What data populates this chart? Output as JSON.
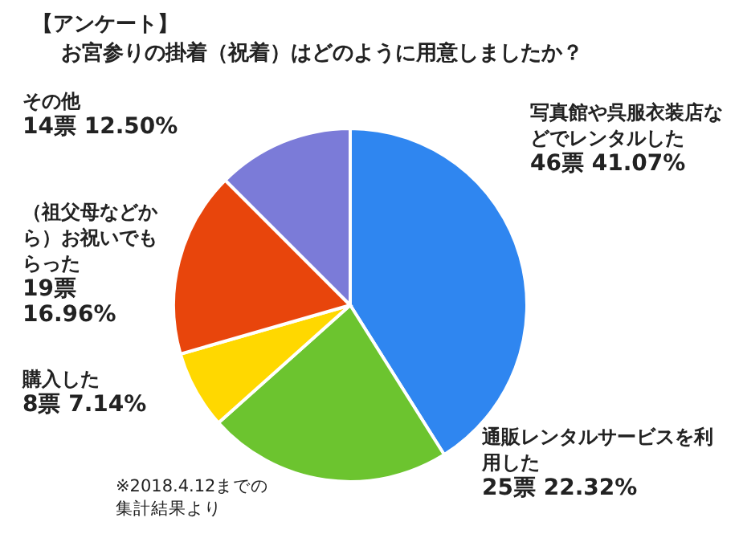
{
  "chart_data": {
    "type": "pie",
    "title": "【アンケート】",
    "subtitle": "お宮参りの掛着（祝着）はどのように用意しましたか？",
    "categories": [
      "写真館や呉服衣装店などでレンタルした",
      "通販レンタルサービスを利用した",
      "購入した",
      "（祖父母などから）お祝いでもらった",
      "その他"
    ],
    "values": [
      46,
      25,
      8,
      19,
      14
    ],
    "value_labels": [
      "46票 41.07%",
      "25票 22.32%",
      "8票 7.14%",
      "19票 16.96%",
      "14票 12.50%"
    ],
    "colors": [
      "#2f86f0",
      "#6cc42f",
      "#ffd800",
      "#e8450c",
      "#7b7bd8"
    ],
    "annotations": [
      "※2018.4.12までの集計結果より"
    ]
  }
}
